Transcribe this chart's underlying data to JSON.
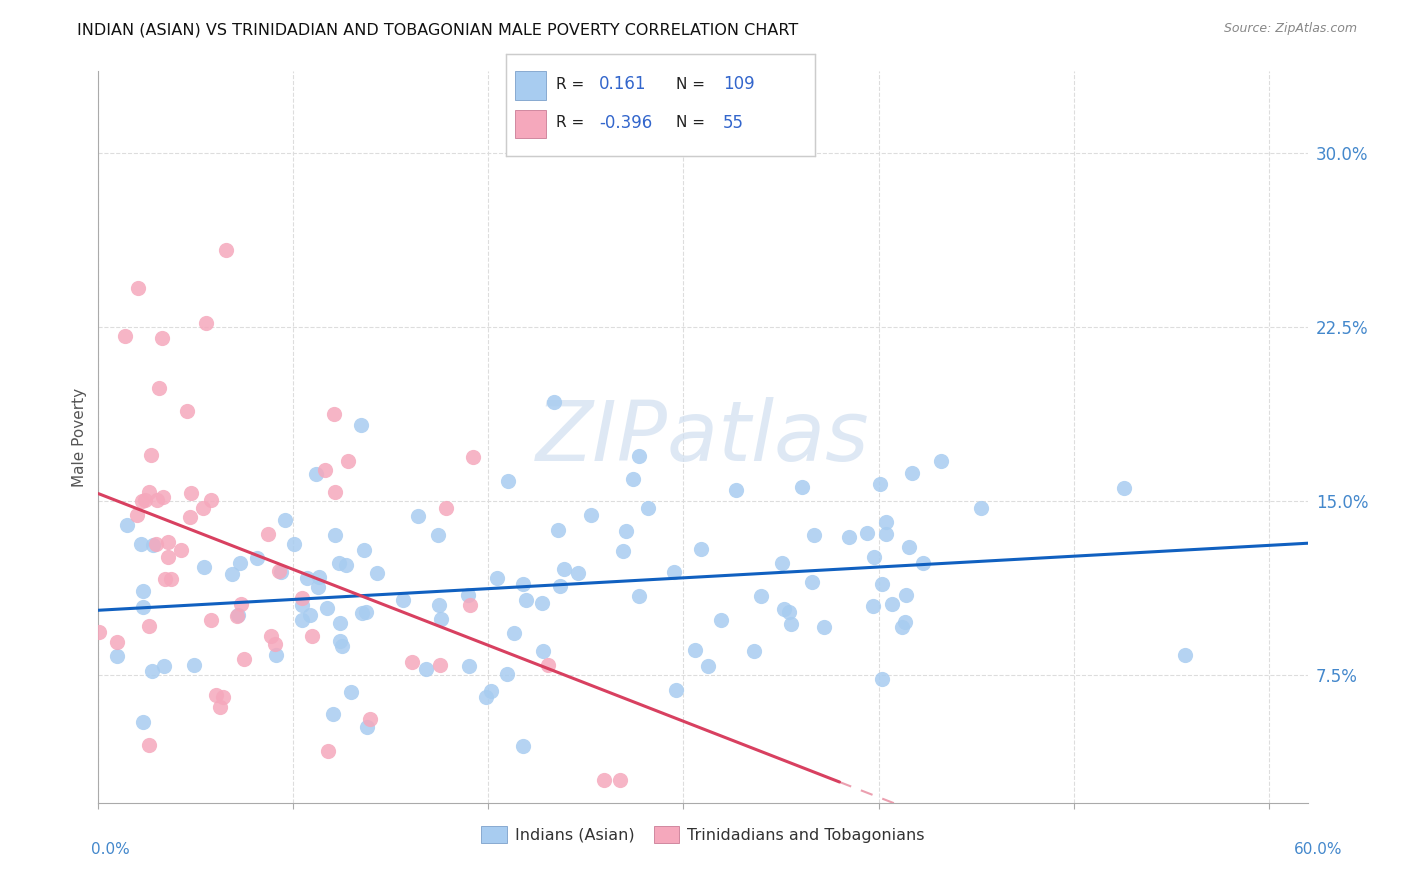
{
  "title": "INDIAN (ASIAN) VS TRINIDADIAN AND TOBAGONIAN MALE POVERTY CORRELATION CHART",
  "source": "Source: ZipAtlas.com",
  "ylabel": "Male Poverty",
  "ytick_labels": [
    "7.5%",
    "15.0%",
    "22.5%",
    "30.0%"
  ],
  "ytick_vals": [
    0.075,
    0.15,
    0.225,
    0.3
  ],
  "xlim": [
    0.0,
    0.62
  ],
  "ylim": [
    0.02,
    0.335
  ],
  "xtick_positions": [
    0.0,
    0.1,
    0.2,
    0.3,
    0.4,
    0.5,
    0.6
  ],
  "legend_label1": "Indians (Asian)",
  "legend_label2": "Trinidadians and Tobagonians",
  "r1": "0.161",
  "n1": "109",
  "r2": "-0.396",
  "n2": "55",
  "color_blue": "#A8CCF0",
  "color_pink": "#F5A8BC",
  "line_blue": "#1060C0",
  "line_pink": "#D84060",
  "watermark_color": "#D0DFF0",
  "watermark_alpha": 0.7,
  "grid_color": "#DDDDDD",
  "axis_color": "#AAAAAA",
  "tick_color": "#555555",
  "right_tick_color": "#4488CC"
}
